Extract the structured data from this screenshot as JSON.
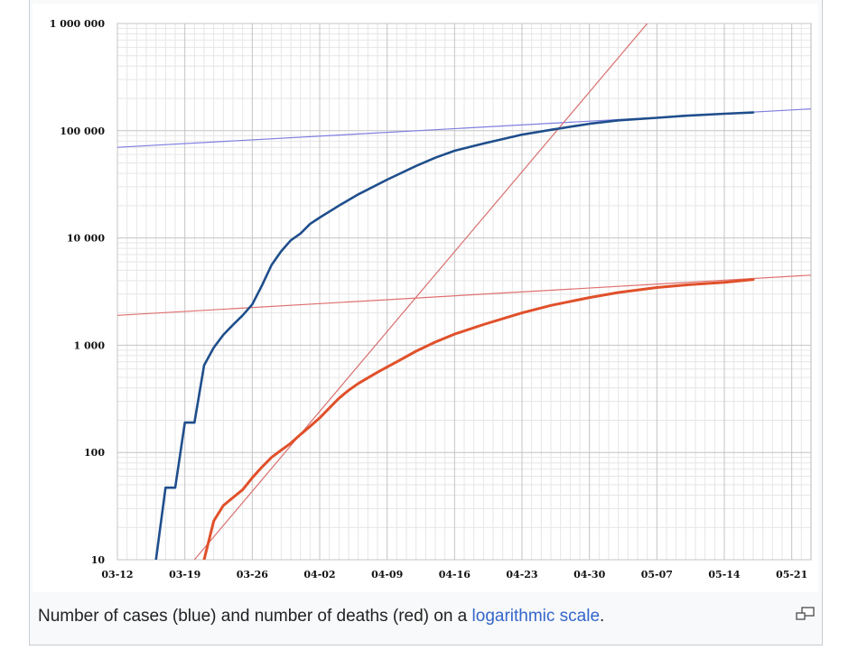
{
  "caption": {
    "before": "Number of cases (blue) and number of deaths (red) on a ",
    "link": "logarithmic scale",
    "after": "."
  },
  "icons": {
    "enlarge": "magnify-clip-icon"
  },
  "chart_data": {
    "type": "line",
    "title": "",
    "xlabel": "",
    "ylabel": "",
    "yscale": "log",
    "ylim": [
      10,
      1000000
    ],
    "xlim": [
      "03-12",
      "05-23"
    ],
    "grid": true,
    "y_ticks": [
      {
        "value": 10,
        "label": "10"
      },
      {
        "value": 100,
        "label": "100"
      },
      {
        "value": 1000,
        "label": "1 000"
      },
      {
        "value": 10000,
        "label": "10 000"
      },
      {
        "value": 100000,
        "label": "100 000"
      },
      {
        "value": 1000000,
        "label": "1 000 000"
      }
    ],
    "x_ticks": [
      "03-12",
      "03-19",
      "03-26",
      "04-02",
      "04-09",
      "04-16",
      "04-23",
      "04-30",
      "05-07",
      "05-14",
      "05-21"
    ],
    "colors": {
      "cases": "#1f4e8c",
      "deaths": "#e0502a",
      "cases_fit": "#7f7fe0",
      "deaths_fit": "#e07070",
      "exp_fit": "#d97070"
    },
    "series": [
      {
        "key": "cases",
        "points": [
          [
            "03-16",
            10
          ],
          [
            "03-17",
            47
          ],
          [
            "03-18",
            47
          ],
          [
            "03-19",
            190
          ],
          [
            "03-20",
            190
          ],
          [
            "03-21",
            650
          ],
          [
            "03-22",
            950
          ],
          [
            "03-23",
            1250
          ],
          [
            "03-24",
            1550
          ],
          [
            "03-25",
            1900
          ],
          [
            "03-26",
            2400
          ],
          [
            "03-27",
            3600
          ],
          [
            "03-28",
            5600
          ],
          [
            "03-29",
            7500
          ],
          [
            "03-30",
            9500
          ],
          [
            "03-31",
            11000
          ],
          [
            "04-01",
            13500
          ],
          [
            "04-02",
            15500
          ],
          [
            "04-04",
            20000
          ],
          [
            "04-06",
            25500
          ],
          [
            "04-09",
            35000
          ],
          [
            "04-12",
            47000
          ],
          [
            "04-14",
            56000
          ],
          [
            "04-16",
            65000
          ],
          [
            "04-19",
            76000
          ],
          [
            "04-23",
            92000
          ],
          [
            "04-26",
            102000
          ],
          [
            "04-30",
            116000
          ],
          [
            "05-03",
            125000
          ],
          [
            "05-07",
            132000
          ],
          [
            "05-10",
            138000
          ],
          [
            "05-14",
            144000
          ],
          [
            "05-17",
            148000
          ]
        ]
      },
      {
        "key": "deaths",
        "points": [
          [
            "03-21",
            10
          ],
          [
            "03-22",
            23
          ],
          [
            "03-23",
            32
          ],
          [
            "03-24",
            38
          ],
          [
            "03-25",
            45
          ],
          [
            "03-26",
            58
          ],
          [
            "03-27",
            73
          ],
          [
            "03-28",
            90
          ],
          [
            "03-29",
            105
          ],
          [
            "03-30",
            122
          ],
          [
            "03-31",
            147
          ],
          [
            "04-01",
            175
          ],
          [
            "04-02",
            210
          ],
          [
            "04-03",
            260
          ],
          [
            "04-04",
            320
          ],
          [
            "04-05",
            380
          ],
          [
            "04-06",
            440
          ],
          [
            "04-08",
            560
          ],
          [
            "04-10",
            700
          ],
          [
            "04-12",
            880
          ],
          [
            "04-14",
            1070
          ],
          [
            "04-16",
            1270
          ],
          [
            "04-19",
            1560
          ],
          [
            "04-23",
            2000
          ],
          [
            "04-26",
            2350
          ],
          [
            "04-30",
            2780
          ],
          [
            "05-03",
            3100
          ],
          [
            "05-07",
            3450
          ],
          [
            "05-10",
            3650
          ],
          [
            "05-14",
            3860
          ],
          [
            "05-17",
            4100
          ]
        ]
      },
      {
        "key": "cases_fit",
        "points": [
          [
            "03-12",
            70000
          ],
          [
            "05-23",
            160000
          ]
        ]
      },
      {
        "key": "deaths_fit",
        "points": [
          [
            "03-12",
            1900
          ],
          [
            "05-23",
            4500
          ]
        ]
      },
      {
        "key": "exp_fit",
        "points": [
          [
            "03-20",
            10
          ],
          [
            "05-06",
            1000000
          ]
        ]
      }
    ]
  }
}
